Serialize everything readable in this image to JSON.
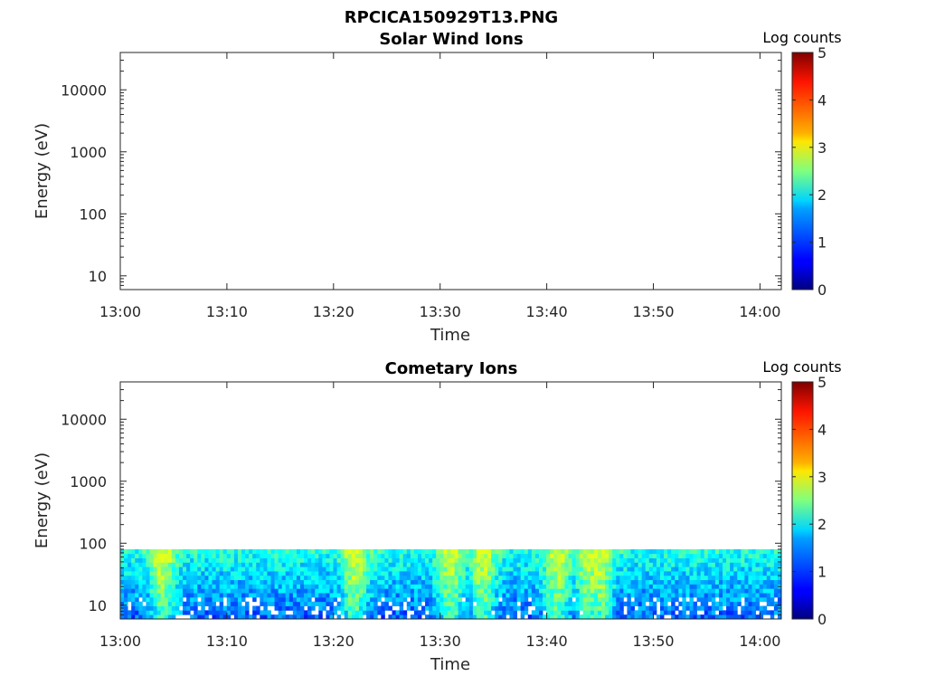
{
  "figure": {
    "title": "RPCICA150929T13.PNG"
  },
  "chart_data": [
    {
      "type": "heatmap",
      "title": "Solar Wind Ions",
      "xlabel": "Time",
      "ylabel": "Energy (eV)",
      "x_ticks": [
        "13:00",
        "13:10",
        "13:20",
        "13:30",
        "13:40",
        "13:50",
        "14:00"
      ],
      "xlim": [
        "13:00",
        "14:02"
      ],
      "y_scale": "log",
      "y_ticks": [
        10,
        100,
        1000,
        10000
      ],
      "y_tick_labels": [
        "10",
        "100",
        "1000",
        "10000"
      ],
      "ylim": [
        6,
        40000
      ],
      "colorbar": {
        "label": "Log counts",
        "range": [
          0,
          5
        ],
        "ticks": [
          "0",
          "1",
          "2",
          "3",
          "4",
          "5"
        ],
        "colormap": "jet"
      },
      "data": "no counts shown (empty)"
    },
    {
      "type": "heatmap",
      "title": "Cometary Ions",
      "xlabel": "Time",
      "ylabel": "Energy (eV)",
      "x_ticks": [
        "13:00",
        "13:10",
        "13:20",
        "13:30",
        "13:40",
        "13:50",
        "14:00"
      ],
      "xlim": [
        "13:00",
        "14:02"
      ],
      "y_scale": "log",
      "y_ticks": [
        10,
        100,
        1000,
        10000
      ],
      "y_tick_labels": [
        "10",
        "100",
        "1000",
        "10000"
      ],
      "ylim": [
        6,
        40000
      ],
      "colorbar": {
        "label": "Log counts",
        "range": [
          0,
          5
        ],
        "ticks": [
          "0",
          "1",
          "2",
          "3",
          "4",
          "5"
        ],
        "colormap": "jet"
      },
      "energy_range_with_counts_eV": [
        6,
        80
      ],
      "approx_log_counts_range": [
        0.5,
        3.0
      ],
      "peak_times": [
        "13:04",
        "13:22",
        "13:31",
        "13:34",
        "13:41",
        "13:44",
        "13:45"
      ]
    }
  ]
}
